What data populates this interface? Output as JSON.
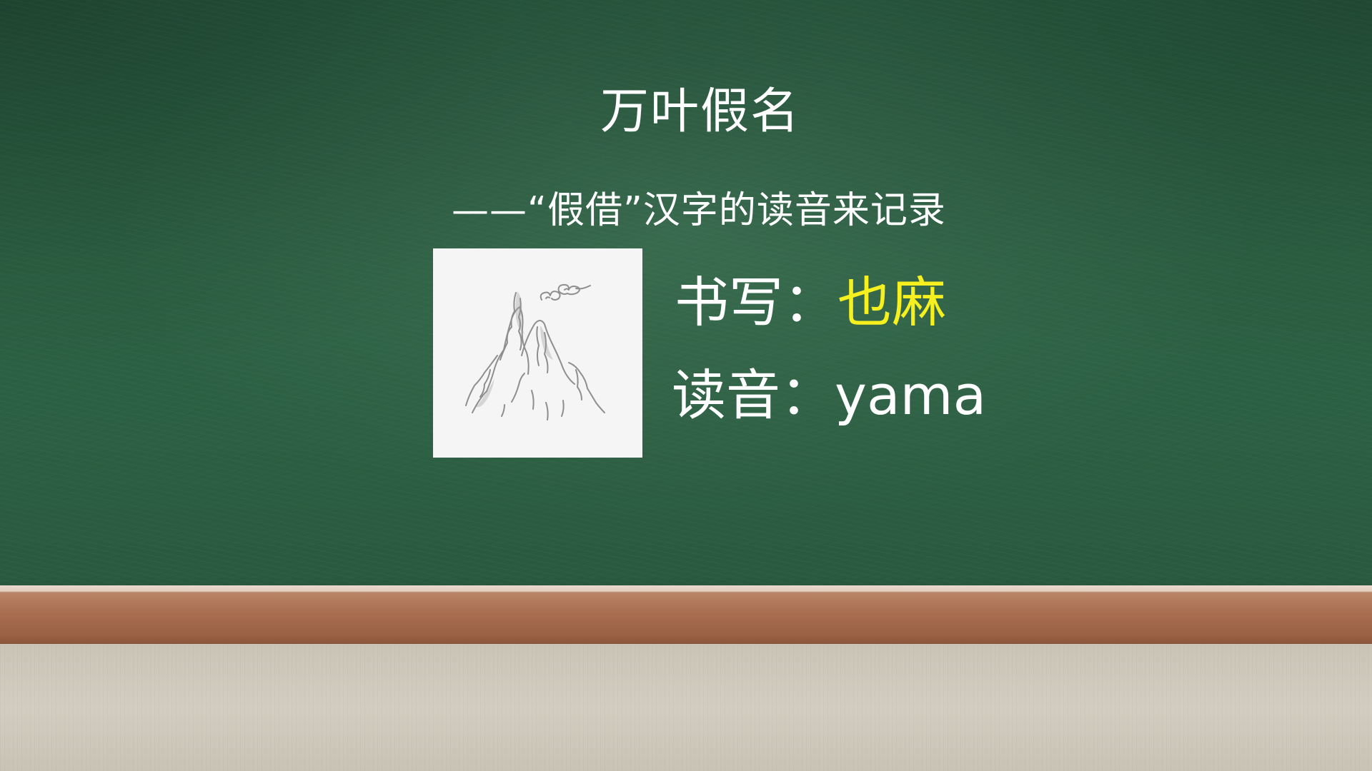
{
  "slide": {
    "title": "万叶假名",
    "subtitle": "——“假借”汉字的读音来记录",
    "writing": {
      "label": "书写：",
      "value": "也麻"
    },
    "reading": {
      "label": "读音：",
      "value": "yama"
    },
    "picture": {
      "icon": "ink-mountain-icon"
    }
  },
  "colors": {
    "board": "#2d6244",
    "text": "#ffffff",
    "highlight": "#f5f01e",
    "ledge": "#a86d4f",
    "floor": "#cfcabd"
  }
}
